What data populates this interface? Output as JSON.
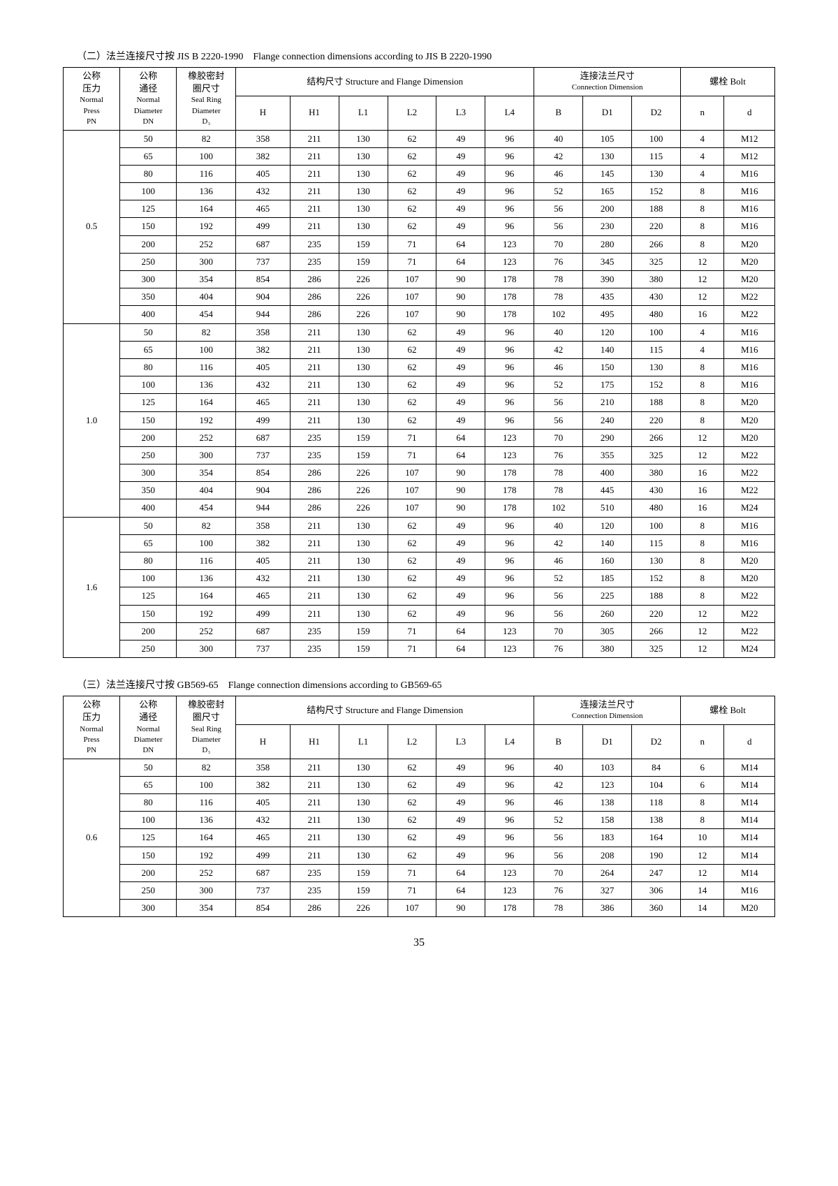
{
  "page_number": "35",
  "section1": {
    "title": "（二）法兰连接尺寸按 JIS B 2220-1990　Flange connection dimensions according to JIS B 2220-1990",
    "headers": {
      "col1_cn": "公称\n压力",
      "col1_en": "Normal\nPress\nPN",
      "col2_cn": "公称\n通径",
      "col2_en": "Normal\nDiameter\nDN",
      "col3_cn": "橡胶密封\n圈尺寸",
      "col3_en": "Seal Ring\nDiameter\nD₃",
      "struct_cn": "结构尺寸 Structure and Flange Dimension",
      "flange_cn": "连接法兰尺寸",
      "flange_en": "Connection Dimension",
      "bolt_cn": "螺栓 Bolt",
      "H": "H",
      "H1": "H1",
      "L1": "L1",
      "L2": "L2",
      "L3": "L3",
      "L4": "L4",
      "B": "B",
      "D1": "D1",
      "D2": "D2",
      "n": "n",
      "d": "d"
    },
    "groups": [
      {
        "pn": "0.5",
        "rows": [
          [
            "50",
            "82",
            "358",
            "211",
            "130",
            "62",
            "49",
            "96",
            "40",
            "105",
            "100",
            "4",
            "M12"
          ],
          [
            "65",
            "100",
            "382",
            "211",
            "130",
            "62",
            "49",
            "96",
            "42",
            "130",
            "115",
            "4",
            "M12"
          ],
          [
            "80",
            "116",
            "405",
            "211",
            "130",
            "62",
            "49",
            "96",
            "46",
            "145",
            "130",
            "4",
            "M16"
          ],
          [
            "100",
            "136",
            "432",
            "211",
            "130",
            "62",
            "49",
            "96",
            "52",
            "165",
            "152",
            "8",
            "M16"
          ],
          [
            "125",
            "164",
            "465",
            "211",
            "130",
            "62",
            "49",
            "96",
            "56",
            "200",
            "188",
            "8",
            "M16"
          ],
          [
            "150",
            "192",
            "499",
            "211",
            "130",
            "62",
            "49",
            "96",
            "56",
            "230",
            "220",
            "8",
            "M16"
          ],
          [
            "200",
            "252",
            "687",
            "235",
            "159",
            "71",
            "64",
            "123",
            "70",
            "280",
            "266",
            "8",
            "M20"
          ],
          [
            "250",
            "300",
            "737",
            "235",
            "159",
            "71",
            "64",
            "123",
            "76",
            "345",
            "325",
            "12",
            "M20"
          ],
          [
            "300",
            "354",
            "854",
            "286",
            "226",
            "107",
            "90",
            "178",
            "78",
            "390",
            "380",
            "12",
            "M20"
          ],
          [
            "350",
            "404",
            "904",
            "286",
            "226",
            "107",
            "90",
            "178",
            "78",
            "435",
            "430",
            "12",
            "M22"
          ],
          [
            "400",
            "454",
            "944",
            "286",
            "226",
            "107",
            "90",
            "178",
            "102",
            "495",
            "480",
            "16",
            "M22"
          ]
        ]
      },
      {
        "pn": "1.0",
        "rows": [
          [
            "50",
            "82",
            "358",
            "211",
            "130",
            "62",
            "49",
            "96",
            "40",
            "120",
            "100",
            "4",
            "M16"
          ],
          [
            "65",
            "100",
            "382",
            "211",
            "130",
            "62",
            "49",
            "96",
            "42",
            "140",
            "115",
            "4",
            "M16"
          ],
          [
            "80",
            "116",
            "405",
            "211",
            "130",
            "62",
            "49",
            "96",
            "46",
            "150",
            "130",
            "8",
            "M16"
          ],
          [
            "100",
            "136",
            "432",
            "211",
            "130",
            "62",
            "49",
            "96",
            "52",
            "175",
            "152",
            "8",
            "M16"
          ],
          [
            "125",
            "164",
            "465",
            "211",
            "130",
            "62",
            "49",
            "96",
            "56",
            "210",
            "188",
            "8",
            "M20"
          ],
          [
            "150",
            "192",
            "499",
            "211",
            "130",
            "62",
            "49",
            "96",
            "56",
            "240",
            "220",
            "8",
            "M20"
          ],
          [
            "200",
            "252",
            "687",
            "235",
            "159",
            "71",
            "64",
            "123",
            "70",
            "290",
            "266",
            "12",
            "M20"
          ],
          [
            "250",
            "300",
            "737",
            "235",
            "159",
            "71",
            "64",
            "123",
            "76",
            "355",
            "325",
            "12",
            "M22"
          ],
          [
            "300",
            "354",
            "854",
            "286",
            "226",
            "107",
            "90",
            "178",
            "78",
            "400",
            "380",
            "16",
            "M22"
          ],
          [
            "350",
            "404",
            "904",
            "286",
            "226",
            "107",
            "90",
            "178",
            "78",
            "445",
            "430",
            "16",
            "M22"
          ],
          [
            "400",
            "454",
            "944",
            "286",
            "226",
            "107",
            "90",
            "178",
            "102",
            "510",
            "480",
            "16",
            "M24"
          ]
        ]
      },
      {
        "pn": "1.6",
        "rows": [
          [
            "50",
            "82",
            "358",
            "211",
            "130",
            "62",
            "49",
            "96",
            "40",
            "120",
            "100",
            "8",
            "M16"
          ],
          [
            "65",
            "100",
            "382",
            "211",
            "130",
            "62",
            "49",
            "96",
            "42",
            "140",
            "115",
            "8",
            "M16"
          ],
          [
            "80",
            "116",
            "405",
            "211",
            "130",
            "62",
            "49",
            "96",
            "46",
            "160",
            "130",
            "8",
            "M20"
          ],
          [
            "100",
            "136",
            "432",
            "211",
            "130",
            "62",
            "49",
            "96",
            "52",
            "185",
            "152",
            "8",
            "M20"
          ],
          [
            "125",
            "164",
            "465",
            "211",
            "130",
            "62",
            "49",
            "96",
            "56",
            "225",
            "188",
            "8",
            "M22"
          ],
          [
            "150",
            "192",
            "499",
            "211",
            "130",
            "62",
            "49",
            "96",
            "56",
            "260",
            "220",
            "12",
            "M22"
          ],
          [
            "200",
            "252",
            "687",
            "235",
            "159",
            "71",
            "64",
            "123",
            "70",
            "305",
            "266",
            "12",
            "M22"
          ],
          [
            "250",
            "300",
            "737",
            "235",
            "159",
            "71",
            "64",
            "123",
            "76",
            "380",
            "325",
            "12",
            "M24"
          ]
        ]
      }
    ]
  },
  "section2": {
    "title": "（三）法兰连接尺寸按 GB569-65　Flange connection dimensions according to GB569-65",
    "groups": [
      {
        "pn": "0.6",
        "rows": [
          [
            "50",
            "82",
            "358",
            "211",
            "130",
            "62",
            "49",
            "96",
            "40",
            "103",
            "84",
            "6",
            "M14"
          ],
          [
            "65",
            "100",
            "382",
            "211",
            "130",
            "62",
            "49",
            "96",
            "42",
            "123",
            "104",
            "6",
            "M14"
          ],
          [
            "80",
            "116",
            "405",
            "211",
            "130",
            "62",
            "49",
            "96",
            "46",
            "138",
            "118",
            "8",
            "M14"
          ],
          [
            "100",
            "136",
            "432",
            "211",
            "130",
            "62",
            "49",
            "96",
            "52",
            "158",
            "138",
            "8",
            "M14"
          ],
          [
            "125",
            "164",
            "465",
            "211",
            "130",
            "62",
            "49",
            "96",
            "56",
            "183",
            "164",
            "10",
            "M14"
          ],
          [
            "150",
            "192",
            "499",
            "211",
            "130",
            "62",
            "49",
            "96",
            "56",
            "208",
            "190",
            "12",
            "M14"
          ],
          [
            "200",
            "252",
            "687",
            "235",
            "159",
            "71",
            "64",
            "123",
            "70",
            "264",
            "247",
            "12",
            "M14"
          ],
          [
            "250",
            "300",
            "737",
            "235",
            "159",
            "71",
            "64",
            "123",
            "76",
            "327",
            "306",
            "14",
            "M16"
          ],
          [
            "300",
            "354",
            "854",
            "286",
            "226",
            "107",
            "90",
            "178",
            "78",
            "386",
            "360",
            "14",
            "M20"
          ]
        ]
      }
    ]
  }
}
